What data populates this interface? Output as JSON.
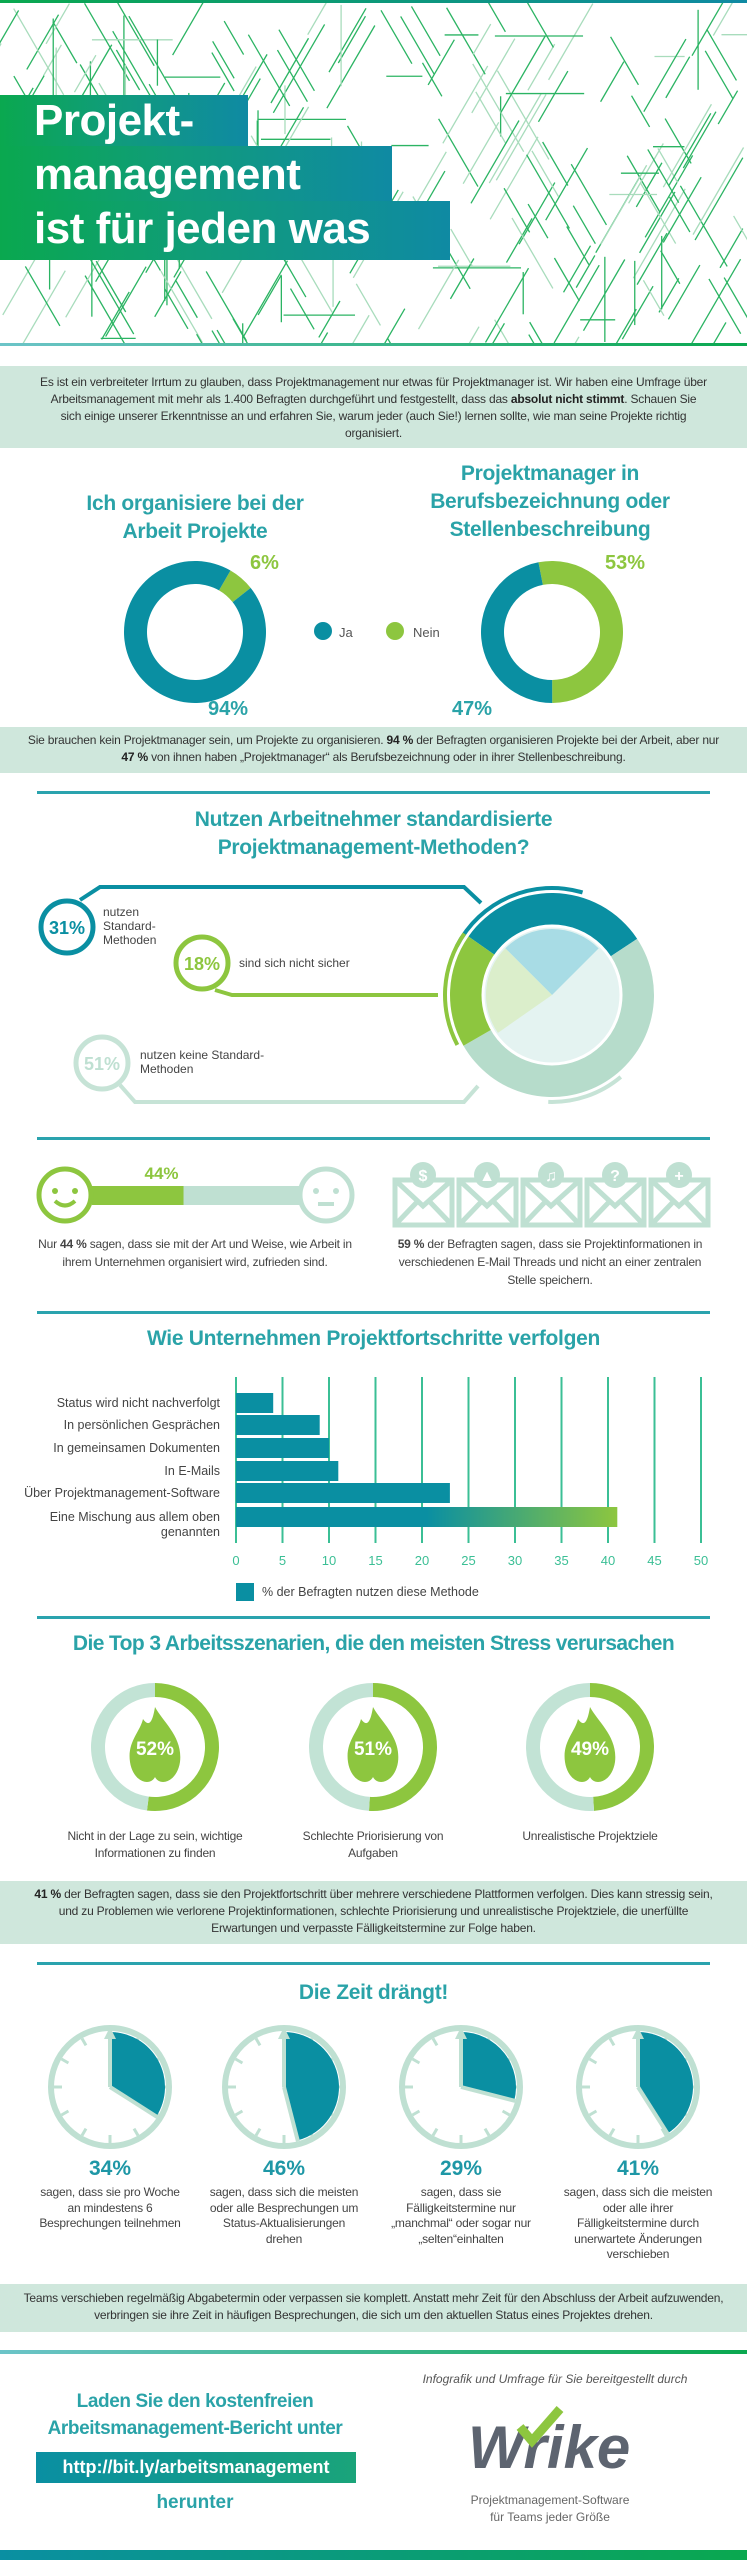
{
  "colors": {
    "teal": "#0a8fa2",
    "title_teal": "#2aa3a8",
    "green": "#8dc63f",
    "mint": "#bfe0d2",
    "band": "#cfe7dc",
    "grey": "#5d6470"
  },
  "header": {
    "title_lines": [
      "Projekt-",
      "management",
      "ist für jeden was"
    ]
  },
  "intro": {
    "pre": "Es ist ein verbreiteter Irrtum zu glauben, dass Projektmanagement nur etwas für Projektmanager ist. Wir haben eine Umfrage über Arbeitsmanagement mit mehr als 1.400 Befragten durchgeführt und festgestellt, dass das ",
    "bold": "absolut nicht stimmt",
    "post": ". Schauen Sie sich einige unserer Erkenntnisse an und erfahren Sie, warum jeder (auch Sie!) lernen sollte, wie man seine Projekte richtig organisiert."
  },
  "donuts": {
    "left": {
      "title": "Ich organisiere bei der Arbeit Projekte",
      "ja": 94,
      "nein": 6,
      "ja_label": "94%",
      "nein_label": "6%"
    },
    "right": {
      "title": "Projektmanager in Berufsbezeichnung oder Stellenbeschreibung",
      "ja": 47,
      "nein": 53,
      "ja_label": "47%",
      "nein_label": "53%"
    },
    "legend": {
      "ja": "Ja",
      "nein": "Nein"
    }
  },
  "band2": {
    "p1": "Sie brauchen kein Projektmanager sein, um Projekte zu organisieren. ",
    "b1": "94 %",
    "p2": " der Befragten organisieren Projekte bei der Arbeit, aber nur ",
    "b2": "47 %",
    "p3": " von ihnen haben „Projektmanager“ als Berufsbezeichnung oder in ihrer Stellenbeschreibung."
  },
  "methods": {
    "title": "Nutzen Arbeitnehmer standardisierte Projektmanagement-Methoden?",
    "items": [
      {
        "pct": 31,
        "label": "31%",
        "text": "nutzen Standard-Methoden"
      },
      {
        "pct": 18,
        "label": "18%",
        "text": "sind sich nicht sicher"
      },
      {
        "pct": 51,
        "label": "51%",
        "text": "nutzen keine Standard-Methoden"
      }
    ]
  },
  "satisfaction": {
    "pct": 44,
    "label": "44%",
    "pre": "Nur ",
    "bold": "44 %",
    "post": " sagen, dass sie mit der Art und Weise, wie Arbeit in ihrem Unternehmen organisiert wird, zufrieden sind."
  },
  "email": {
    "icons": [
      "dollar-icon",
      "image-icon",
      "music-icon",
      "question-icon",
      "plus-icon"
    ],
    "glyphs": [
      "$",
      "▲",
      "♫",
      "?",
      "+"
    ],
    "bold": "59 %",
    "post": " der Befragten sagen, dass sie Projektinformationen in verschiedenen E-Mail Threads und nicht an einer zentralen Stelle speichern."
  },
  "chart_data": {
    "type": "bar",
    "orientation": "horizontal",
    "title": "Wie Unternehmen Projektfortschritte verfolgen",
    "categories": [
      "Status wird nicht nachverfolgt",
      "In persönlichen Gesprächen",
      "In gemeinsamen Dokumenten",
      "In E-Mails",
      "Über Projektmanagement-Software",
      "Eine Mischung aus allem oben genannten"
    ],
    "series": [
      {
        "name": "% der Befragten nutzen diese Methode",
        "values": [
          4,
          9,
          10,
          11,
          23,
          41
        ]
      }
    ],
    "xlim": [
      0,
      50
    ],
    "xticks": [
      "0",
      "5",
      "10",
      "15",
      "20",
      "25",
      "30",
      "35",
      "40",
      "45",
      "50"
    ],
    "grid": true,
    "legend": "bottom"
  },
  "stress": {
    "title": "Die Top 3 Arbeitsszenarien, die den meisten Stress verursachen",
    "items": [
      {
        "pct": 52,
        "label": "52%",
        "text": "Nicht in der Lage zu sein, wichtige Informationen zu finden"
      },
      {
        "pct": 51,
        "label": "51%",
        "text": "Schlechte Priorisierung von Aufgaben"
      },
      {
        "pct": 49,
        "label": "49%",
        "text": "Unrealistische Projektziele"
      }
    ]
  },
  "band3": {
    "bold": "41 %",
    "post": " der Befragten sagen, dass sie den Projektfortschritt über mehrere verschiedene Plattformen verfolgen. Dies kann stressig sein, und zu Problemen wie verlorene Projektinformationen, schlechte Priorisierung und unrealistische Projektziele, die unerfüllte Erwartungen und verpasste Fälligkeitstermine zur Folge haben."
  },
  "time": {
    "title": "Die Zeit drängt!",
    "items": [
      {
        "pct": 34,
        "label": "34%",
        "text": "sagen, dass sie pro Woche an mindestens 6 Besprechungen teilnehmen"
      },
      {
        "pct": 46,
        "label": "46%",
        "text": "sagen, dass sich die meisten oder alle Besprechungen um Status-Aktualisierungen drehen"
      },
      {
        "pct": 29,
        "label": "29%",
        "text": "sagen, dass sie Fälligkeitstermine nur „manchmal“ oder sogar nur „selten“einhalten"
      },
      {
        "pct": 41,
        "label": "41%",
        "text": "sagen, dass sich die meisten oder alle ihrer Fälligkeitstermine durch unerwartete Änderungen verschieben"
      }
    ]
  },
  "band4": {
    "text": "Teams verschieben regelmäßig Abgabetermin oder verpassen sie komplett. Anstatt mehr Zeit für den Abschluss der Arbeit aufzuwenden, verbringen sie ihre Zeit in häufigen Besprechungen, die sich um den aktuellen Status eines Projektes drehen."
  },
  "footer": {
    "cta_line1": "Laden Sie den kostenfreien",
    "cta_line2": "Arbeitsmanagement-Bericht unter",
    "url": "http://bit.ly/arbeitsmanagement",
    "cta_line3": "herunter",
    "credit": "Infografik und Umfrage für Sie bereitgestellt durch",
    "logo": "Wrike",
    "tagline1": "Projektmanagement-Software",
    "tagline2": "für Teams jeder Größe"
  }
}
